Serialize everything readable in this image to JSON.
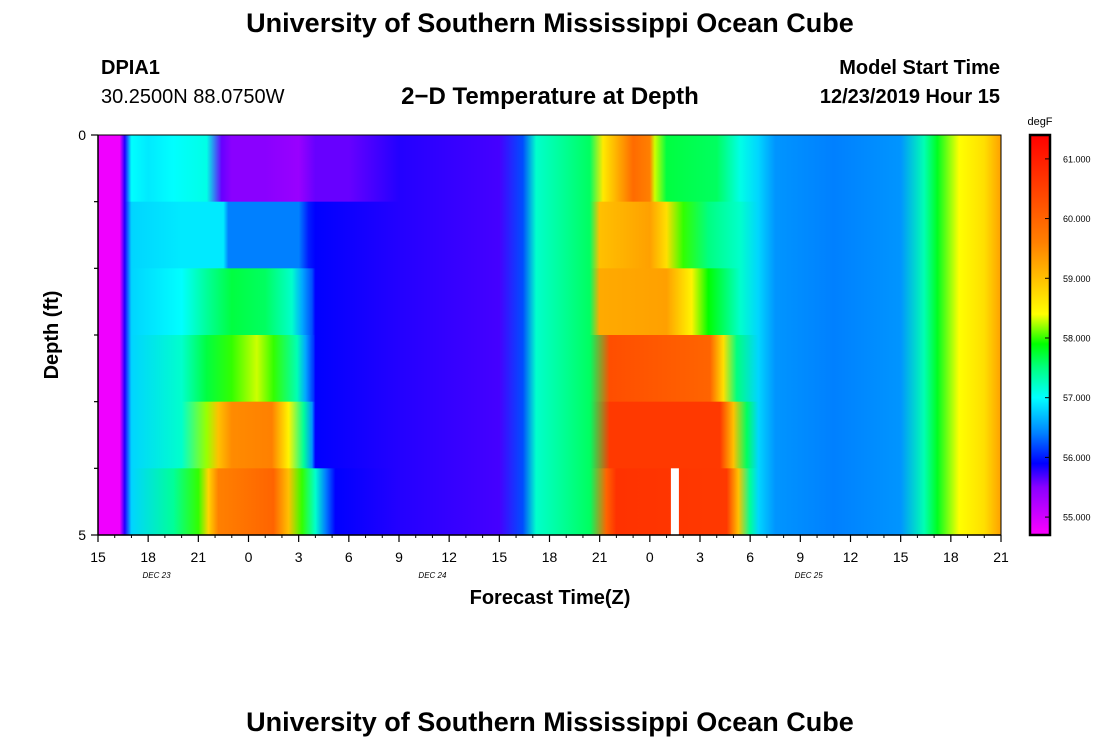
{
  "header": {
    "title": "University of Southern Mississippi Ocean Cube",
    "station_id": "DPIA1",
    "station_coords": "30.2500N 88.0750W",
    "subtitle": "2−D Temperature at Depth",
    "model_start_label": "Model Start Time",
    "model_start_value": "12/23/2019 Hour 15"
  },
  "footer": {
    "title": "University of Southern Mississippi Ocean Cube"
  },
  "chart_data": {
    "type": "heatmap",
    "title": "2−D Temperature at Depth",
    "xlabel": "Forecast Time(Z)",
    "ylabel": "Depth (ft)",
    "x_hours": [
      0,
      3,
      6,
      9,
      12,
      15,
      18,
      21,
      24,
      27,
      30,
      33,
      36,
      39,
      42,
      45,
      48,
      51,
      54
    ],
    "x_tick_labels": [
      "15",
      "18",
      "21",
      "0",
      "3",
      "6",
      "9",
      "12",
      "15",
      "18",
      "21",
      "0",
      "3",
      "6",
      "9",
      "12",
      "15",
      "18",
      "21"
    ],
    "date_labels": [
      {
        "hour": 3.5,
        "label": "DEC 23"
      },
      {
        "hour": 20,
        "label": "DEC 24"
      },
      {
        "hour": 42.5,
        "label": "DEC 25"
      }
    ],
    "xlim": [
      0,
      54
    ],
    "y_tick_labels": [
      "0",
      "5"
    ],
    "ylim": [
      0,
      5
    ],
    "depth_levels": 5,
    "colorbar": {
      "unit": "degF",
      "range": [
        54.7,
        61.4
      ],
      "tick_values": [
        55,
        56,
        57,
        58,
        59,
        60,
        61
      ],
      "tick_labels": [
        "55.000",
        "56.000",
        "57.000",
        "58.000",
        "59.000",
        "60.000",
        "61.000"
      ]
    },
    "stops": [
      "#ff00ff",
      "#8a00ff",
      "#0000ff",
      "#0080ff",
      "#00ffff",
      "#00ff80",
      "#00ff00",
      "#ffff00",
      "#ff8000",
      "#ff0000"
    ],
    "stop_values": [
      54.7,
      55.5,
      55.9,
      56.4,
      57.0,
      57.5,
      57.9,
      58.4,
      59.6,
      61.4
    ],
    "layers": [
      {
        "depth_index": 0,
        "points": [
          [
            0,
            54.8
          ],
          [
            1.3,
            54.8
          ],
          [
            1.6,
            55.8
          ],
          [
            2,
            57.0
          ],
          [
            3,
            56.9
          ],
          [
            4.5,
            57.0
          ],
          [
            6.5,
            57.1
          ],
          [
            7.4,
            55.6
          ],
          [
            8,
            55.5
          ],
          [
            10,
            55.5
          ],
          [
            12,
            55.4
          ],
          [
            13,
            55.6
          ],
          [
            15,
            55.6
          ],
          [
            18,
            55.8
          ],
          [
            24,
            55.7
          ],
          [
            25.4,
            56.2
          ],
          [
            26.2,
            57.2
          ],
          [
            29.4,
            57.6
          ],
          [
            30.2,
            58.6
          ],
          [
            32,
            59.9
          ],
          [
            33,
            59.6
          ],
          [
            33.3,
            58.3
          ],
          [
            34,
            57.7
          ],
          [
            37,
            57.6
          ],
          [
            38.4,
            57.1
          ],
          [
            39.5,
            56.8
          ],
          [
            40.5,
            56.5
          ],
          [
            44,
            56.4
          ],
          [
            48,
            56.5
          ],
          [
            49.4,
            57.3
          ],
          [
            50.2,
            57.8
          ],
          [
            51.5,
            58.4
          ],
          [
            53,
            58.7
          ],
          [
            54,
            59.3
          ]
        ]
      },
      {
        "depth_index": 1,
        "points": [
          [
            0,
            54.8
          ],
          [
            1.3,
            54.8
          ],
          [
            1.6,
            55.8
          ],
          [
            2,
            56.8
          ],
          [
            5,
            56.9
          ],
          [
            7.5,
            56.9
          ],
          [
            7.8,
            56.4
          ],
          [
            12,
            56.4
          ],
          [
            12.6,
            56.0
          ],
          [
            13,
            55.9
          ],
          [
            18,
            55.8
          ],
          [
            24,
            55.7
          ],
          [
            25.4,
            56.2
          ],
          [
            26.2,
            57.2
          ],
          [
            29.4,
            57.6
          ],
          [
            30,
            59.0
          ],
          [
            33,
            59.3
          ],
          [
            34,
            58.7
          ],
          [
            35,
            58.0
          ],
          [
            36.5,
            57.5
          ],
          [
            38.4,
            57.2
          ],
          [
            39.5,
            56.8
          ],
          [
            40.5,
            56.5
          ],
          [
            44,
            56.4
          ],
          [
            48,
            56.5
          ],
          [
            49.4,
            57.3
          ],
          [
            50.2,
            57.8
          ],
          [
            51.5,
            58.4
          ],
          [
            53,
            58.7
          ],
          [
            54,
            59.3
          ]
        ]
      },
      {
        "depth_index": 2,
        "points": [
          [
            0,
            54.8
          ],
          [
            1.3,
            54.8
          ],
          [
            1.6,
            55.8
          ],
          [
            2,
            56.8
          ],
          [
            5,
            57.0
          ],
          [
            6.5,
            57.4
          ],
          [
            8,
            57.7
          ],
          [
            10,
            57.6
          ],
          [
            11.6,
            57.2
          ],
          [
            12.2,
            56.6
          ],
          [
            12.8,
            56.2
          ],
          [
            13,
            55.9
          ],
          [
            18,
            55.8
          ],
          [
            24,
            55.7
          ],
          [
            25.4,
            56.2
          ],
          [
            26.2,
            57.2
          ],
          [
            29.4,
            57.6
          ],
          [
            30,
            59.2
          ],
          [
            34,
            59.3
          ],
          [
            35.5,
            58.5
          ],
          [
            36.5,
            57.9
          ],
          [
            38.4,
            57.2
          ],
          [
            39.5,
            56.8
          ],
          [
            40.5,
            56.5
          ],
          [
            44,
            56.4
          ],
          [
            48,
            56.5
          ],
          [
            49.4,
            57.3
          ],
          [
            50.2,
            57.8
          ],
          [
            51.5,
            58.4
          ],
          [
            53,
            58.7
          ],
          [
            54,
            59.3
          ]
        ]
      },
      {
        "depth_index": 3,
        "points": [
          [
            0,
            54.8
          ],
          [
            1.3,
            54.8
          ],
          [
            1.6,
            55.8
          ],
          [
            2,
            56.8
          ],
          [
            5,
            57.2
          ],
          [
            6.5,
            57.7
          ],
          [
            8,
            58.0
          ],
          [
            9.5,
            58.3
          ],
          [
            10.5,
            58.0
          ],
          [
            11.9,
            57.3
          ],
          [
            12.4,
            56.6
          ],
          [
            12.9,
            56.1
          ],
          [
            13,
            55.9
          ],
          [
            18,
            55.8
          ],
          [
            24,
            55.7
          ],
          [
            25.4,
            56.2
          ],
          [
            26.2,
            57.2
          ],
          [
            29.4,
            57.6
          ],
          [
            30.6,
            60.3
          ],
          [
            36.6,
            60.0
          ],
          [
            37.4,
            58.7
          ],
          [
            38.2,
            57.5
          ],
          [
            39.5,
            56.8
          ],
          [
            40.5,
            56.5
          ],
          [
            44,
            56.4
          ],
          [
            48,
            56.5
          ],
          [
            49.4,
            57.3
          ],
          [
            50.2,
            57.8
          ],
          [
            51.5,
            58.4
          ],
          [
            53,
            58.7
          ],
          [
            54,
            59.3
          ]
        ]
      },
      {
        "depth_index": 4,
        "points": [
          [
            0,
            54.8
          ],
          [
            1.3,
            54.8
          ],
          [
            1.6,
            55.8
          ],
          [
            2,
            56.8
          ],
          [
            5,
            57.2
          ],
          [
            6.5,
            58.2
          ],
          [
            7.2,
            59.0
          ],
          [
            8,
            59.5
          ],
          [
            10.4,
            59.6
          ],
          [
            11.4,
            58.5
          ],
          [
            12.3,
            57.4
          ],
          [
            12.8,
            56.5
          ],
          [
            13,
            55.9
          ],
          [
            18,
            55.8
          ],
          [
            24,
            55.7
          ],
          [
            25.4,
            56.2
          ],
          [
            26.2,
            57.2
          ],
          [
            29.4,
            57.6
          ],
          [
            30.6,
            60.6
          ],
          [
            37.2,
            60.6
          ],
          [
            38,
            59.0
          ],
          [
            38.8,
            57.6
          ],
          [
            39.5,
            56.8
          ],
          [
            40.5,
            56.5
          ],
          [
            44,
            56.4
          ],
          [
            48,
            56.5
          ],
          [
            49.4,
            57.3
          ],
          [
            50.2,
            57.8
          ],
          [
            51.5,
            58.4
          ],
          [
            53,
            58.7
          ],
          [
            54,
            59.3
          ]
        ]
      },
      {
        "depth_index": 5,
        "points": [
          [
            0,
            54.8
          ],
          [
            1.3,
            54.8
          ],
          [
            1.6,
            55.8
          ],
          [
            2,
            56.8
          ],
          [
            4.5,
            57.4
          ],
          [
            6,
            58.0
          ],
          [
            6.6,
            58.8
          ],
          [
            7.2,
            59.6
          ],
          [
            10.5,
            60.0
          ],
          [
            11.4,
            59.0
          ],
          [
            12.2,
            58.0
          ],
          [
            13,
            57.2
          ],
          [
            13.6,
            56.4
          ],
          [
            14.2,
            55.9
          ],
          [
            18,
            55.8
          ],
          [
            24,
            55.7
          ],
          [
            25.4,
            56.2
          ],
          [
            26.2,
            57.2
          ],
          [
            29.4,
            57.6
          ],
          [
            30.4,
            60.0
          ],
          [
            31,
            60.7
          ],
          [
            37.6,
            60.6
          ],
          [
            38.3,
            59.0
          ],
          [
            39,
            57.4
          ],
          [
            39.5,
            56.8
          ],
          [
            40.5,
            56.5
          ],
          [
            44,
            56.4
          ],
          [
            48,
            56.5
          ],
          [
            49.4,
            57.3
          ],
          [
            50.2,
            57.8
          ],
          [
            51.5,
            58.4
          ],
          [
            53,
            58.7
          ],
          [
            54,
            59.3
          ]
        ]
      }
    ],
    "missing_bars": [
      {
        "hour": 34.5,
        "depth_index": 5
      }
    ]
  }
}
